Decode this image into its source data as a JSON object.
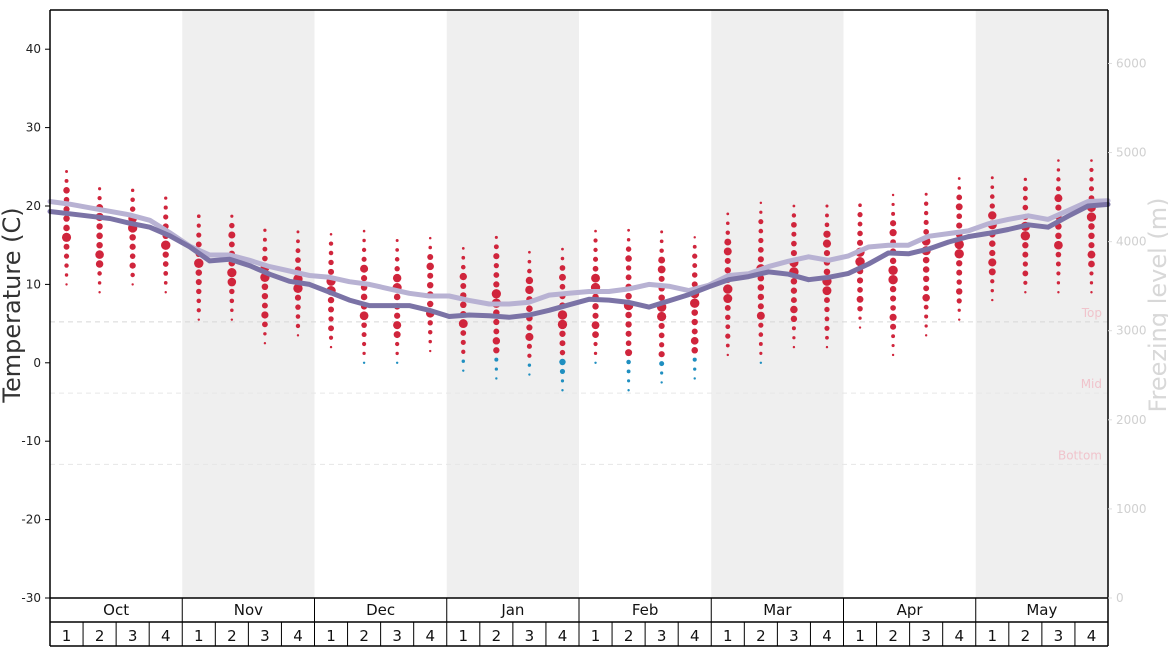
{
  "chart_data": {
    "type": "line",
    "ylabel": "Temperature (C)",
    "y2label": "Freezing level (m)",
    "ylim": [
      -30,
      45
    ],
    "y_ticks": [
      -30,
      -20,
      -10,
      0,
      10,
      20,
      30,
      40
    ],
    "y2lim": [
      0,
      6600
    ],
    "y2_ticks": [
      0,
      1000,
      2000,
      3000,
      4000,
      5000,
      6000
    ],
    "months": [
      "Oct",
      "Nov",
      "Dec",
      "Jan",
      "Feb",
      "Mar",
      "Apr",
      "May"
    ],
    "weeks": [
      "1",
      "2",
      "3",
      "4"
    ],
    "elevation_levels": [
      {
        "name": "Top",
        "freezing_level_m": 3100
      },
      {
        "name": "Mid",
        "freezing_level_m": 2300
      },
      {
        "name": "Bottom",
        "freezing_level_m": 1500
      }
    ],
    "series": [
      {
        "name": "Freezing level (m)",
        "color": "#b8b2d3",
        "axis": "right",
        "values": [
          4450,
          4420,
          4380,
          4340,
          4300,
          4240,
          4100,
          3950,
          3850,
          3850,
          3790,
          3720,
          3670,
          3620,
          3600,
          3550,
          3520,
          3470,
          3420,
          3390,
          3390,
          3340,
          3300,
          3300,
          3320,
          3400,
          3420,
          3440,
          3440,
          3470,
          3520,
          3500,
          3450,
          3510,
          3620,
          3640,
          3720,
          3780,
          3830,
          3790,
          3840,
          3940,
          3960,
          3960,
          4060,
          4090,
          4120,
          4200,
          4250,
          4290,
          4250,
          4350,
          4450,
          4460
        ]
      },
      {
        "name": "Average temperature (C)",
        "color": "#7b73a6",
        "axis": "left",
        "values": [
          19.3,
          19.0,
          18.7,
          18.4,
          17.8,
          17.3,
          16.2,
          14.8,
          13.0,
          13.2,
          12.4,
          11.3,
          10.4,
          10.0,
          9.0,
          8.0,
          7.3,
          7.3,
          7.3,
          6.7,
          5.9,
          6.1,
          6.0,
          5.8,
          6.1,
          6.7,
          7.4,
          8.1,
          8.0,
          7.7,
          7.1,
          7.9,
          8.7,
          9.7,
          10.6,
          11.0,
          11.6,
          11.3,
          10.6,
          10.9,
          11.4,
          12.6,
          14.0,
          13.9,
          14.5,
          15.4,
          16.1,
          16.5,
          17.0,
          17.6,
          17.3,
          18.7,
          20.0,
          20.2
        ]
      }
    ],
    "weekly_temperature_dots": {
      "color_above_zero": "#d0253c",
      "color_below_zero": "#1f8fc0",
      "ranges": [
        [
          10,
          25
        ],
        [
          9,
          23
        ],
        [
          10,
          23
        ],
        [
          9,
          21.5
        ],
        [
          5.5,
          19.5
        ],
        [
          5.5,
          19.5
        ],
        [
          2.5,
          17.5
        ],
        [
          3.5,
          17
        ],
        [
          2,
          16.5
        ],
        [
          0,
          17
        ],
        [
          0,
          16
        ],
        [
          1.5,
          16
        ],
        [
          -1,
          15
        ],
        [
          -2,
          17
        ],
        [
          -1.5,
          14.5
        ],
        [
          -3.5,
          15
        ],
        [
          0,
          17
        ],
        [
          -3.5,
          17.5
        ],
        [
          -2.5,
          17.5
        ],
        [
          -2,
          16
        ],
        [
          1,
          19.5
        ],
        [
          0,
          20.5
        ],
        [
          2,
          20.5
        ],
        [
          2,
          21
        ],
        [
          4.5,
          21
        ],
        [
          1,
          21.5
        ],
        [
          3.5,
          22
        ],
        [
          5.5,
          24
        ],
        [
          8,
          24
        ],
        [
          9,
          24
        ],
        [
          9,
          26
        ],
        [
          9,
          26
        ]
      ]
    }
  }
}
